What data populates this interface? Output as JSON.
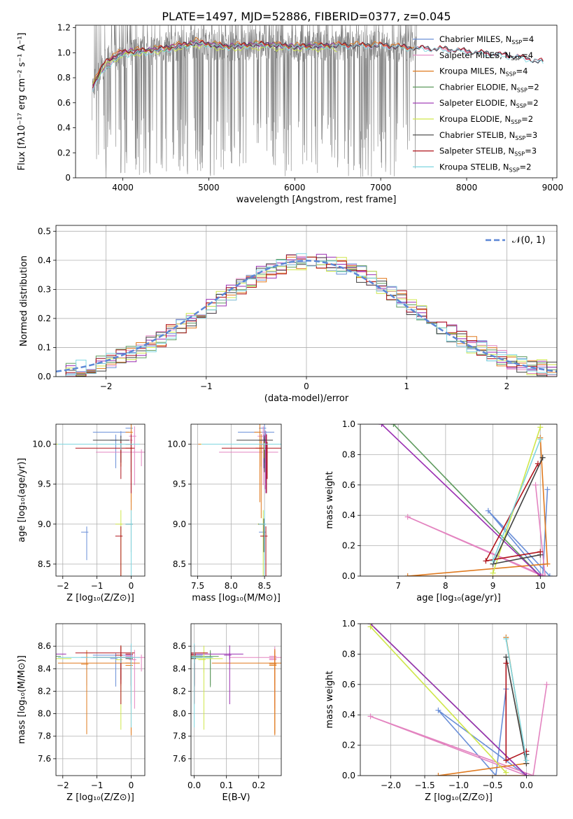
{
  "figure": {
    "title": "PLATE=1497, MJD=52886, FIBERID=0377, z=0.045"
  },
  "chart_data": [
    {
      "id": "spectrum",
      "type": "line",
      "xlabel": "wavelength [Angstrom, rest frame]",
      "ylabel": "Flux [fλ10⁻¹⁷ erg cm⁻² s⁻¹ A⁻¹]",
      "xlim": [
        3450,
        9050
      ],
      "ylim": [
        0,
        1.22
      ],
      "xticks": [
        4000,
        5000,
        6000,
        7000,
        8000,
        9000
      ],
      "yticks": [
        0,
        0.2,
        0.4,
        0.6,
        0.8,
        1.0,
        1.2
      ],
      "grid": false,
      "legend_position": "right",
      "data_curve": {
        "color": "#808080",
        "x_range": [
          3640,
          7420
        ],
        "note_noise": true
      },
      "series": [
        {
          "name": "Chabrier MILES, N_SSP=4",
          "color": "#6a8fd8",
          "wave": [
            3650,
            3800,
            4000,
            4300,
            4600,
            4850,
            5200,
            5600,
            6000,
            6500,
            7000,
            7400,
            7800,
            8200,
            8600,
            8900
          ],
          "flux": [
            0.73,
            0.93,
            1.0,
            1.02,
            1.05,
            1.08,
            1.05,
            1.07,
            1.05,
            1.06,
            1.06,
            1.04,
            1.03,
            1.0,
            0.97,
            0.92
          ]
        },
        {
          "name": "Salpeter MILES, N_SSP=4",
          "color": "#e384c0",
          "wave": [
            3650,
            3800,
            4000,
            4300,
            4600,
            4850,
            5200,
            5600,
            6000,
            6500,
            7000,
            7400,
            7800,
            8200,
            8600,
            8900
          ],
          "flux": [
            0.72,
            0.9,
            1.0,
            1.02,
            1.04,
            1.09,
            1.05,
            1.06,
            1.05,
            1.06,
            1.05,
            1.04,
            1.02,
            1.0,
            0.97,
            0.93
          ]
        },
        {
          "name": "Kroupa MILES, N_SSP=4",
          "color": "#e07a1f",
          "wave": [
            3650,
            3800,
            4000,
            4300,
            4600,
            4850,
            5200,
            5600,
            6000,
            6500,
            7000,
            7400
          ],
          "flux": [
            0.75,
            0.95,
            1.02,
            1.03,
            1.06,
            1.1,
            1.06,
            1.08,
            1.06,
            1.07,
            1.07,
            1.04
          ]
        },
        {
          "name": "Chabrier ELODIE, N_SSP=2",
          "color": "#5e9a5e",
          "wave": [
            3650,
            3800,
            4000,
            4300,
            4600,
            4850,
            5200,
            5600,
            6000,
            6500
          ],
          "flux": [
            0.74,
            0.92,
            1.0,
            1.02,
            1.04,
            1.08,
            1.05,
            1.07,
            1.05,
            1.06
          ]
        },
        {
          "name": "Salpeter ELODIE, N_SSP=2",
          "color": "#9a2fb2",
          "wave": [
            3650,
            3800,
            4000,
            4300,
            4600,
            4850,
            5200,
            5600,
            6000,
            6500
          ],
          "flux": [
            0.73,
            0.91,
            1.01,
            1.02,
            1.05,
            1.08,
            1.05,
            1.07,
            1.05,
            1.06
          ]
        },
        {
          "name": "Kroupa ELODIE, N_SSP=2",
          "color": "#cfe64a",
          "wave": [
            3650,
            3800,
            4000,
            4300,
            4600,
            4850,
            5200,
            5600,
            6000,
            6500
          ],
          "flux": [
            0.76,
            0.9,
            0.98,
            1.0,
            1.03,
            1.06,
            1.03,
            1.04,
            1.03,
            1.03
          ]
        },
        {
          "name": "Chabrier STELIB, N_SSP=3",
          "color": "#404040",
          "wave": [
            3650,
            3800,
            4000,
            4300,
            4600,
            4850,
            5200,
            5600,
            6000,
            6500,
            7000,
            7400,
            7800,
            8200,
            8600,
            8900
          ],
          "flux": [
            0.74,
            0.93,
            1.0,
            1.02,
            1.05,
            1.08,
            1.05,
            1.07,
            1.05,
            1.06,
            1.06,
            1.04,
            1.03,
            1.0,
            0.97,
            0.92
          ]
        },
        {
          "name": "Salpeter STELIB, N_SSP=3",
          "color": "#b0141c",
          "wave": [
            3650,
            3800,
            4000,
            4300,
            4600,
            4850,
            5200,
            5600,
            6000,
            6500,
            7000,
            7400,
            7800,
            8200,
            8600,
            8900
          ],
          "flux": [
            0.74,
            0.94,
            1.01,
            1.02,
            1.05,
            1.08,
            1.05,
            1.07,
            1.05,
            1.06,
            1.06,
            1.04,
            1.03,
            1.0,
            0.97,
            0.93
          ]
        },
        {
          "name": "Kroupa STELIB, N_SSP=2",
          "color": "#7fd6e0",
          "wave": [
            3650,
            3800,
            4000,
            4300,
            4600,
            4850,
            5200,
            5600,
            6000,
            6500,
            7000,
            7400,
            7800,
            8200,
            8600,
            8900
          ],
          "flux": [
            0.7,
            0.88,
            0.98,
            1.0,
            1.03,
            1.07,
            1.04,
            1.06,
            1.04,
            1.05,
            1.05,
            1.03,
            1.02,
            0.99,
            0.96,
            0.92
          ]
        }
      ]
    },
    {
      "id": "residuals",
      "type": "histogram",
      "xlabel": "(data-model)/error",
      "ylabel": "Normed distribution",
      "xlim": [
        -2.5,
        2.5
      ],
      "ylim": [
        0,
        0.52
      ],
      "xticks": [
        -2,
        -1,
        0,
        1,
        2
      ],
      "yticks": [
        0.0,
        0.1,
        0.2,
        0.3,
        0.4,
        0.5
      ],
      "grid": true,
      "legend_position": "top-right",
      "legend": [
        {
          "name": "𝒩(0, 1)",
          "color": "#5b86d6",
          "style": "dashed"
        }
      ],
      "bin_width": 0.1
    },
    {
      "id": "age-vs-Z",
      "type": "errorbar",
      "xlabel": "Z [log₁₀(Z/Z⊙)]",
      "ylabel": "age  [log₁₀(age/yr)]",
      "xlim": [
        -2.2,
        0.4
      ],
      "ylim": [
        8.35,
        10.25
      ],
      "xticks": [
        -2,
        -1,
        0
      ],
      "yticks": [
        8.5,
        9.0,
        9.5,
        10.0
      ],
      "grid": true
    },
    {
      "id": "age-vs-mass",
      "type": "errorbar",
      "xlabel": "mass [log₁₀(M/M⊙)]",
      "ylabel": "",
      "xlim": [
        7.4,
        8.75
      ],
      "ylim": [
        8.35,
        10.25
      ],
      "xticks": [
        7.5,
        8.0,
        8.5
      ],
      "yticks": [
        8.5,
        9.0,
        9.5,
        10.0
      ],
      "grid": true
    },
    {
      "id": "weight-vs-age",
      "type": "line",
      "xlabel": "age  [log₁₀(age/yr)]",
      "ylabel": "mass weight",
      "xlim": [
        6.2,
        10.35
      ],
      "ylim": [
        0,
        1.0
      ],
      "xticks": [
        7,
        8,
        9,
        10
      ],
      "yticks": [
        0.0,
        0.2,
        0.4,
        0.6,
        0.8,
        1.0
      ],
      "grid": true
    },
    {
      "id": "mass-vs-Z",
      "type": "errorbar",
      "xlabel": "Z [log₁₀(Z/Z⊙)]",
      "ylabel": "mass [log₁₀(M/M⊙)]",
      "xlim": [
        -2.2,
        0.4
      ],
      "ylim": [
        7.45,
        8.8
      ],
      "xticks": [
        -2,
        -1,
        0
      ],
      "yticks": [
        7.6,
        7.8,
        8.0,
        8.2,
        8.4,
        8.6
      ],
      "grid": true
    },
    {
      "id": "mass-vs-ebv",
      "type": "errorbar",
      "xlabel": "E(B-V)",
      "ylabel": "",
      "xlim": [
        -0.01,
        0.27
      ],
      "ylim": [
        7.45,
        8.8
      ],
      "xticks": [
        0.0,
        0.1,
        0.2
      ],
      "yticks": [
        7.6,
        7.8,
        8.0,
        8.2,
        8.4,
        8.6
      ],
      "grid": true
    },
    {
      "id": "weight-vs-Z",
      "type": "line",
      "xlabel": "Z [log₁₀(Z/Z⊙)]",
      "ylabel": "mass weight",
      "xlim": [
        -2.45,
        0.45
      ],
      "ylim": [
        0,
        1.0
      ],
      "xticks": [
        -2.0,
        -1.5,
        -1.0,
        -0.5,
        0.0
      ],
      "yticks": [
        0.0,
        0.2,
        0.4,
        0.6,
        0.8,
        1.0
      ],
      "grid": true
    }
  ],
  "models": [
    {
      "name": "Chabrier MILES",
      "color": "#6a8fd8",
      "age": [
        10.15,
        10.05,
        8.9,
        10.2
      ],
      "Z": [
        -0.3,
        -0.45,
        -1.3,
        0.0
      ],
      "w": [
        0.57,
        0.0,
        0.43,
        0.0
      ],
      "mass": [
        8.52,
        8.49,
        8.5,
        8.5
      ],
      "ebv": 0.0
    },
    {
      "name": "Salpeter MILES, N_SSP=4",
      "color": "#e384c0",
      "age": [
        9.9,
        10.1,
        7.2,
        10.05
      ],
      "Z": [
        0.3,
        0.1,
        -2.3,
        0.0
      ],
      "w": [
        0.6,
        0.0,
        0.39,
        0.0
      ],
      "mass": [
        8.5,
        8.48,
        8.49,
        8.51
      ],
      "ebv": 0.25
    },
    {
      "name": "Kroupa MILES",
      "color": "#e07a1f",
      "age": [
        10.0,
        10.15,
        7.2,
        9.95
      ],
      "Z": [
        -0.3,
        0.0,
        -1.3,
        0.0
      ],
      "w": [
        0.91,
        0.08,
        0.0,
        0.0
      ],
      "mass": [
        8.45,
        8.43,
        8.44,
        8.45
      ],
      "ebv": 0.25
    },
    {
      "name": "Chabrier ELODIE",
      "color": "#5e9a5e",
      "age": [
        6.9,
        10.0
      ],
      "Z": [
        -2.3,
        0.0
      ],
      "w": [
        1.0,
        0.0
      ],
      "mass": [
        8.51,
        8.5
      ],
      "ebv": 0.05
    },
    {
      "name": "Salpeter ELODIE",
      "color": "#9a2fb2",
      "age": [
        6.65,
        10.0
      ],
      "Z": [
        -2.3,
        0.0
      ],
      "w": [
        1.0,
        0.0
      ],
      "mass": [
        8.53,
        8.52
      ],
      "ebv": 0.11
    },
    {
      "name": "Kroupa ELODIE",
      "color": "#cfe64a",
      "age": [
        10.0,
        9.0
      ],
      "Z": [
        -2.3,
        -0.3
      ],
      "w": [
        0.98,
        0.02
      ],
      "mass": [
        8.49,
        8.48
      ],
      "ebv": 0.03
    },
    {
      "name": "Chabrier STELIB",
      "color": "#404040",
      "age": [
        10.05,
        9.0,
        10.0
      ],
      "Z": [
        -0.3,
        0.0,
        0.0
      ],
      "w": [
        0.78,
        0.08,
        0.14
      ],
      "mass": [
        8.5,
        8.49,
        8.5
      ],
      "ebv": 0.0
    },
    {
      "name": "Salpeter STELIB",
      "color": "#b0141c",
      "age": [
        9.95,
        8.85,
        10.0
      ],
      "Z": [
        -0.3,
        -0.3,
        0.0
      ],
      "w": [
        0.74,
        0.1,
        0.16
      ],
      "mass": [
        8.54,
        8.52,
        8.53
      ],
      "ebv": 0.0
    },
    {
      "name": "Kroupa STELIB",
      "color": "#7fd6e0",
      "age": [
        10.0,
        9.0
      ],
      "Z": [
        -0.3,
        0.0
      ],
      "w": [
        0.9,
        0.1
      ],
      "mass": [
        8.5,
        8.5
      ],
      "ebv": 0.0
    }
  ]
}
